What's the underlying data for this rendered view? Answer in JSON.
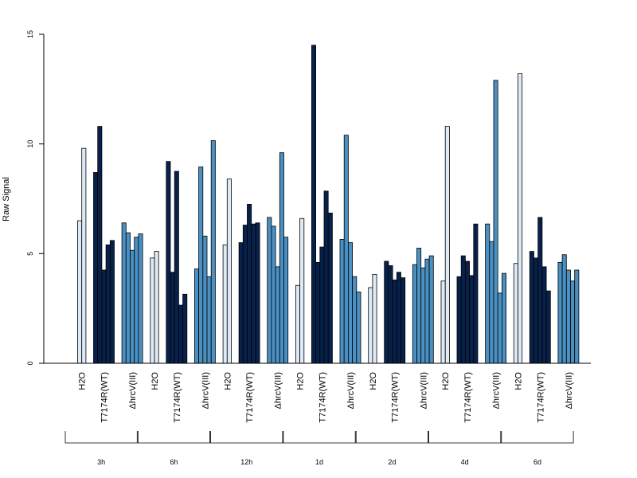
{
  "chart_data": {
    "type": "bar",
    "ylabel": "Raw Signal",
    "xlabel": "",
    "title": "",
    "ylim": [
      0,
      15
    ],
    "yticks": [
      0,
      5,
      10,
      15
    ],
    "grid": false,
    "colors": {
      "H2O": "#deebf7",
      "T7174R(WT)": "#08214a",
      "ΔhrcV(III)": "#4a90c2"
    },
    "groups": [
      {
        "label": "3h",
        "subgroups": [
          {
            "label": "H2O",
            "values": [
              6.5,
              9.8
            ]
          },
          {
            "label": "T7174R(WT)",
            "values": [
              8.7,
              10.8,
              4.25,
              5.4,
              5.6
            ]
          },
          {
            "label": "ΔhrcV(III)",
            "values": [
              6.4,
              5.95,
              5.15,
              5.75,
              5.9
            ]
          }
        ]
      },
      {
        "label": "6h",
        "subgroups": [
          {
            "label": "H2O",
            "values": [
              4.8,
              5.1
            ]
          },
          {
            "label": "T7174R(WT)",
            "values": [
              9.2,
              4.15,
              8.75,
              2.65,
              3.15
            ]
          },
          {
            "label": "ΔhrcV(III)",
            "values": [
              4.3,
              8.95,
              5.8,
              3.95,
              10.15
            ]
          }
        ]
      },
      {
        "label": "12h",
        "subgroups": [
          {
            "label": "H2O",
            "values": [
              5.4,
              8.4
            ]
          },
          {
            "label": "T7174R(WT)",
            "values": [
              5.5,
              6.3,
              7.25,
              6.35,
              6.4
            ]
          },
          {
            "label": "ΔhrcV(III)",
            "values": [
              6.65,
              6.25,
              4.4,
              9.6,
              5.75
            ]
          }
        ]
      },
      {
        "label": "1d",
        "subgroups": [
          {
            "label": "H2O",
            "values": [
              3.55,
              6.6
            ]
          },
          {
            "label": "T7174R(WT)",
            "values": [
              14.5,
              4.6,
              5.3,
              7.85,
              6.85
            ]
          },
          {
            "label": "ΔhrcV(III)",
            "values": [
              5.65,
              10.4,
              5.5,
              3.95,
              3.25
            ]
          }
        ]
      },
      {
        "label": "2d",
        "subgroups": [
          {
            "label": "H2O",
            "values": [
              3.45,
              4.05
            ]
          },
          {
            "label": "T7174R(WT)",
            "values": [
              4.65,
              4.45,
              3.8,
              4.15,
              3.9
            ]
          },
          {
            "label": "ΔhrcV(III)",
            "values": [
              4.5,
              5.25,
              4.35,
              4.75,
              4.9
            ]
          }
        ]
      },
      {
        "label": "4d",
        "subgroups": [
          {
            "label": "H2O",
            "values": [
              3.75,
              10.8
            ]
          },
          {
            "label": "T7174R(WT)",
            "values": [
              3.95,
              4.9,
              4.65,
              4.0,
              6.35
            ]
          },
          {
            "label": "ΔhrcV(III)",
            "values": [
              6.35,
              5.55,
              12.9,
              3.2,
              4.1
            ]
          }
        ]
      },
      {
        "label": "6d",
        "subgroups": [
          {
            "label": "H2O",
            "values": [
              4.55,
              13.2
            ]
          },
          {
            "label": "T7174R(WT)",
            "values": [
              5.1,
              4.8,
              6.65,
              4.4,
              3.3
            ]
          },
          {
            "label": "ΔhrcV(III)",
            "values": [
              4.6,
              4.95,
              4.25,
              3.75,
              4.25
            ]
          }
        ]
      }
    ]
  }
}
